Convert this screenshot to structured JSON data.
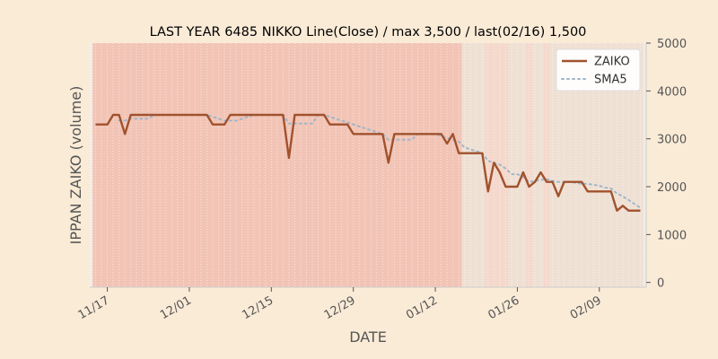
{
  "chart_data": {
    "type": "line",
    "title": "LAST YEAR 6485 NIKKO Line(Close) / max 3,500 / last(02/16) 1,500",
    "xlabel": "DATE",
    "ylabel": "IPPAN ZAIKO (volume)",
    "ylim": [
      -100,
      5000
    ],
    "yticks": [
      0,
      1000,
      2000,
      3000,
      4000,
      5000
    ],
    "ytick_labels": [
      "0",
      "1000",
      "2000",
      "3000",
      "4000",
      "5000"
    ],
    "y_axis_side": "right",
    "xlim": [
      "2023-11-14",
      "2024-02-17"
    ],
    "xticks": [
      "2023-11-17",
      "2023-12-01",
      "2023-12-15",
      "2023-12-29",
      "2024-01-12",
      "2024-01-26",
      "2024-02-09"
    ],
    "xtick_labels": [
      "11/17",
      "12/01",
      "12/15",
      "12/29",
      "01/12",
      "01/26",
      "02/09"
    ],
    "grid": true,
    "legend_position": "top-right",
    "background_color": "#faebd7",
    "series": [
      {
        "name": "ZAIKO",
        "color": "#a0522d",
        "style": "solid",
        "x": [
          "2023-11-15",
          "2023-11-16",
          "2023-11-17",
          "2023-11-18",
          "2023-11-19",
          "2023-11-20",
          "2023-11-21",
          "2023-11-22",
          "2023-11-23",
          "2023-11-24",
          "2023-11-25",
          "2023-11-26",
          "2023-11-27",
          "2023-11-28",
          "2023-11-29",
          "2023-11-30",
          "2023-12-01",
          "2023-12-02",
          "2023-12-03",
          "2023-12-04",
          "2023-12-05",
          "2023-12-06",
          "2023-12-07",
          "2023-12-08",
          "2023-12-09",
          "2023-12-10",
          "2023-12-11",
          "2023-12-12",
          "2023-12-13",
          "2023-12-14",
          "2023-12-15",
          "2023-12-16",
          "2023-12-17",
          "2023-12-18",
          "2023-12-19",
          "2023-12-20",
          "2023-12-21",
          "2023-12-22",
          "2023-12-23",
          "2023-12-24",
          "2023-12-25",
          "2023-12-26",
          "2023-12-27",
          "2023-12-28",
          "2023-12-29",
          "2023-12-30",
          "2023-12-31",
          "2024-01-01",
          "2024-01-02",
          "2024-01-03",
          "2024-01-04",
          "2024-01-05",
          "2024-01-06",
          "2024-01-07",
          "2024-01-08",
          "2024-01-09",
          "2024-01-10",
          "2024-01-11",
          "2024-01-12",
          "2024-01-13",
          "2024-01-14",
          "2024-01-15",
          "2024-01-16",
          "2024-01-17",
          "2024-01-18",
          "2024-01-19",
          "2024-01-20",
          "2024-01-21",
          "2024-01-22",
          "2024-01-23",
          "2024-01-24",
          "2024-01-25",
          "2024-01-26",
          "2024-01-27",
          "2024-01-28",
          "2024-01-29",
          "2024-01-30",
          "2024-01-31",
          "2024-02-01",
          "2024-02-02",
          "2024-02-03",
          "2024-02-04",
          "2024-02-05",
          "2024-02-06",
          "2024-02-07",
          "2024-02-08",
          "2024-02-09",
          "2024-02-10",
          "2024-02-11",
          "2024-02-12",
          "2024-02-13",
          "2024-02-14",
          "2024-02-15",
          "2024-02-16"
        ],
        "values": [
          3300,
          3300,
          3300,
          3500,
          3500,
          3100,
          3500,
          3500,
          3500,
          3500,
          3500,
          3500,
          3500,
          3500,
          3500,
          3500,
          3500,
          3500,
          3500,
          3500,
          3300,
          3300,
          3300,
          3500,
          3500,
          3500,
          3500,
          3500,
          3500,
          3500,
          3500,
          3500,
          3500,
          2600,
          3500,
          3500,
          3500,
          3500,
          3500,
          3500,
          3300,
          3300,
          3300,
          3300,
          3100,
          3100,
          3100,
          3100,
          3100,
          3100,
          2500,
          3100,
          3100,
          3100,
          3100,
          3100,
          3100,
          3100,
          3100,
          3100,
          2900,
          3100,
          2700,
          2700,
          2700,
          2700,
          2700,
          1900,
          2500,
          2300,
          2000,
          2000,
          2000,
          2300,
          2000,
          2100,
          2300,
          2100,
          2100,
          1800,
          2100,
          2100,
          2100,
          2100,
          1900,
          1900,
          1900,
          1900,
          1900,
          1500,
          1600,
          1500,
          1500,
          1500
        ]
      },
      {
        "name": "SMA5",
        "color": "#9fb6c8",
        "style": "dotted",
        "x": [
          "2023-11-19",
          "2023-11-20",
          "2023-11-21",
          "2023-11-22",
          "2023-11-23",
          "2023-11-24",
          "2023-11-25",
          "2023-11-26",
          "2023-11-27",
          "2023-11-28",
          "2023-11-29",
          "2023-11-30",
          "2023-12-01",
          "2023-12-02",
          "2023-12-03",
          "2023-12-04",
          "2023-12-05",
          "2023-12-06",
          "2023-12-07",
          "2023-12-08",
          "2023-12-09",
          "2023-12-10",
          "2023-12-11",
          "2023-12-12",
          "2023-12-13",
          "2023-12-14",
          "2023-12-15",
          "2023-12-16",
          "2023-12-17",
          "2023-12-18",
          "2023-12-19",
          "2023-12-20",
          "2023-12-21",
          "2023-12-22",
          "2023-12-23",
          "2023-12-24",
          "2023-12-25",
          "2023-12-26",
          "2023-12-27",
          "2023-12-28",
          "2023-12-29",
          "2023-12-30",
          "2023-12-31",
          "2024-01-01",
          "2024-01-02",
          "2024-01-03",
          "2024-01-04",
          "2024-01-05",
          "2024-01-06",
          "2024-01-07",
          "2024-01-08",
          "2024-01-09",
          "2024-01-10",
          "2024-01-11",
          "2024-01-12",
          "2024-01-13",
          "2024-01-14",
          "2024-01-15",
          "2024-01-16",
          "2024-01-17",
          "2024-01-18",
          "2024-01-19",
          "2024-01-20",
          "2024-01-21",
          "2024-01-22",
          "2024-01-23",
          "2024-01-24",
          "2024-01-25",
          "2024-01-26",
          "2024-01-27",
          "2024-01-28",
          "2024-01-29",
          "2024-01-30",
          "2024-01-31",
          "2024-02-01",
          "2024-02-02",
          "2024-02-03",
          "2024-02-04",
          "2024-02-05",
          "2024-02-06",
          "2024-02-07",
          "2024-02-08",
          "2024-02-09",
          "2024-02-10",
          "2024-02-11",
          "2024-02-12",
          "2024-02-13",
          "2024-02-14",
          "2024-02-15",
          "2024-02-16"
        ],
        "values": [
          3380,
          3380,
          3420,
          3420,
          3420,
          3420,
          3500,
          3500,
          3500,
          3500,
          3500,
          3500,
          3500,
          3500,
          3500,
          3500,
          3460,
          3420,
          3380,
          3380,
          3380,
          3420,
          3460,
          3500,
          3500,
          3500,
          3500,
          3500,
          3500,
          3320,
          3320,
          3320,
          3320,
          3320,
          3500,
          3500,
          3460,
          3420,
          3380,
          3340,
          3300,
          3260,
          3220,
          3180,
          3140,
          3100,
          2980,
          2980,
          2980,
          2980,
          2980,
          3100,
          3100,
          3100,
          3100,
          3060,
          3020,
          2980,
          2940,
          2820,
          2780,
          2740,
          2700,
          2540,
          2500,
          2460,
          2380,
          2260,
          2260,
          2200,
          2100,
          2120,
          2140,
          2160,
          2120,
          2100,
          2100,
          2100,
          2080,
          2060,
          2060,
          2040,
          2020,
          1980,
          1960,
          1860,
          1800,
          1720,
          1640,
          1560
        ]
      }
    ],
    "bands": [
      {
        "from": "2023-11-15",
        "to": "2023-12-18",
        "level": "high"
      },
      {
        "from": "2023-12-19",
        "to": "2024-01-04",
        "level": "high"
      },
      {
        "from": "2024-01-05",
        "to": "2024-01-16",
        "level": "high"
      },
      {
        "from": "2024-01-17",
        "to": "2024-01-20",
        "level": "low"
      },
      {
        "from": "2024-01-21",
        "to": "2024-01-22",
        "level": "mid"
      },
      {
        "from": "2024-01-23",
        "to": "2024-01-24",
        "level": "mid"
      },
      {
        "from": "2024-01-25",
        "to": "2024-01-27",
        "level": "low"
      },
      {
        "from": "2024-01-28",
        "to": "2024-01-28",
        "level": "mid"
      },
      {
        "from": "2024-01-29",
        "to": "2024-01-30",
        "level": "low"
      },
      {
        "from": "2024-01-31",
        "to": "2024-01-31",
        "level": "mid"
      },
      {
        "from": "2024-02-01",
        "to": "2024-02-16",
        "level": "low"
      }
    ]
  }
}
